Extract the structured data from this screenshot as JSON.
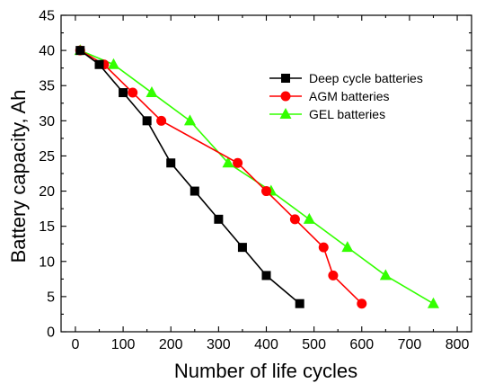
{
  "chart_data": {
    "type": "line",
    "title": "",
    "xlabel": "Number of life cycles",
    "ylabel": "Battery capacity, Ah",
    "xlim": [
      -30,
      830
    ],
    "ylim": [
      0,
      45
    ],
    "x_ticks": [
      0,
      100,
      200,
      300,
      400,
      500,
      600,
      700,
      800
    ],
    "y_ticks": [
      0,
      5,
      10,
      15,
      20,
      25,
      30,
      35,
      40,
      45
    ],
    "grid": false,
    "legend_position": "top-right",
    "series": [
      {
        "name": "Deep cycle batteries",
        "color": "#000000",
        "marker": "square",
        "x": [
          10,
          50,
          100,
          150,
          200,
          250,
          300,
          350,
          400,
          470
        ],
        "y": [
          40,
          38,
          34,
          30,
          24,
          20,
          16,
          12,
          8,
          4
        ]
      },
      {
        "name": "AGM batteries",
        "color": "#ff0000",
        "marker": "circle",
        "x": [
          10,
          60,
          120,
          180,
          340,
          400,
          460,
          520,
          540,
          600
        ],
        "y": [
          40,
          38,
          34,
          30,
          24,
          20,
          16,
          12,
          8,
          4
        ]
      },
      {
        "name": "GEL batteries",
        "color": "#33ff00",
        "marker": "triangle",
        "x": [
          10,
          80,
          160,
          240,
          320,
          410,
          490,
          570,
          650,
          750
        ],
        "y": [
          40,
          38,
          34,
          30,
          24,
          20,
          16,
          12,
          8,
          4
        ]
      }
    ]
  }
}
